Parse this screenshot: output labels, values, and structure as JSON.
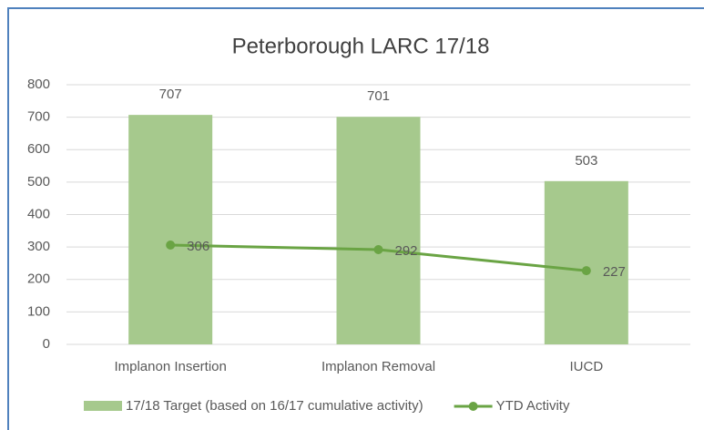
{
  "chart_data": {
    "type": "bar",
    "title": "Peterborough  LARC 17/18",
    "categories": [
      "Implanon Insertion",
      "Implanon Removal",
      "IUCD"
    ],
    "series": [
      {
        "name": "17/18 Target (based on 16/17 cumulative activity)",
        "type": "bar",
        "color": "#a6c98d",
        "values": [
          707,
          701,
          503
        ]
      },
      {
        "name": "YTD Activity",
        "type": "line",
        "color": "#6aa444",
        "values": [
          306,
          292,
          227
        ]
      }
    ],
    "ylim": [
      0,
      800
    ],
    "yticks": [
      0,
      100,
      200,
      300,
      400,
      500,
      600,
      700,
      800
    ],
    "grid": true,
    "legend": "bottom"
  }
}
